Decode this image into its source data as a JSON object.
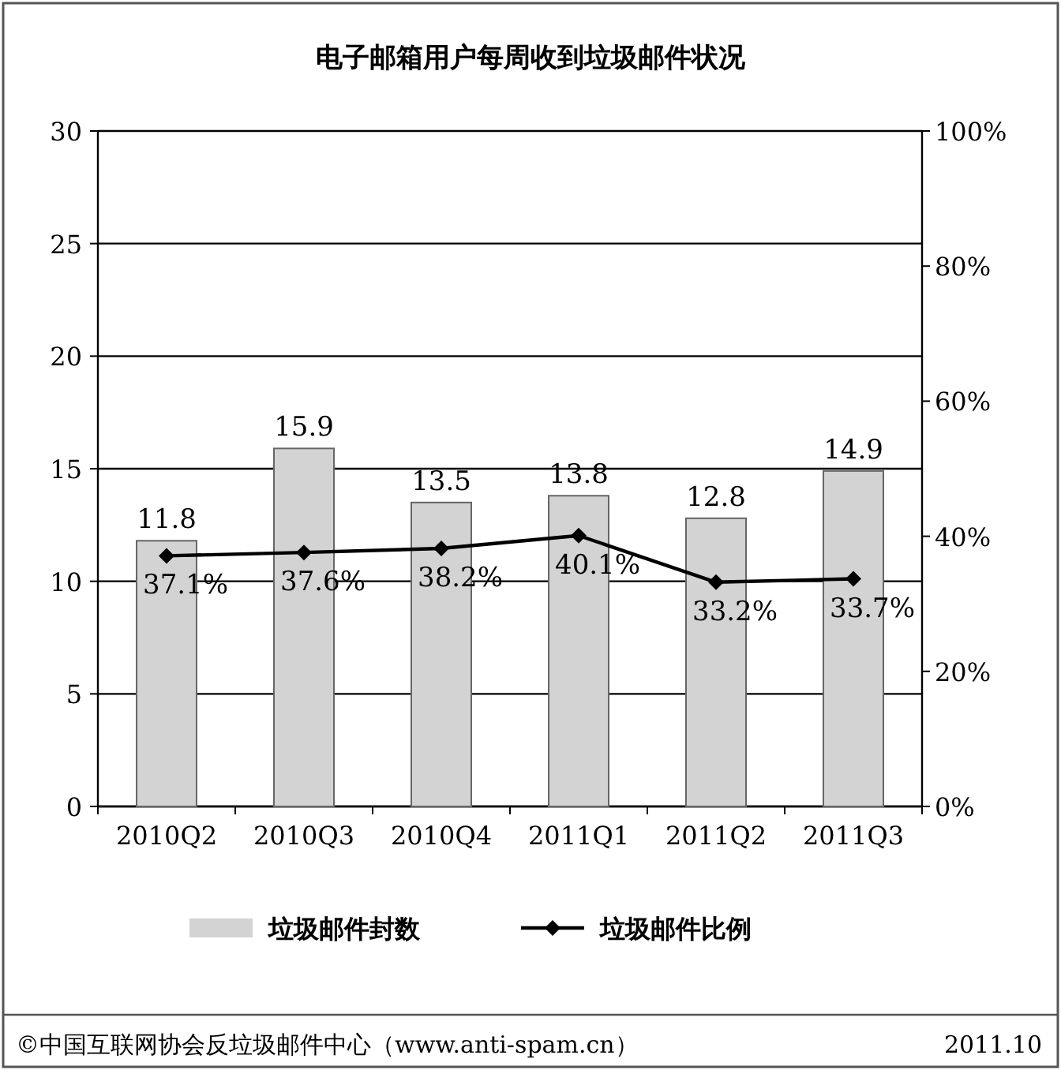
{
  "chart_data": {
    "type": "bar",
    "title": "电子邮箱用户每周收到垃圾邮件状况",
    "categories": [
      "2010Q2",
      "2010Q3",
      "2010Q4",
      "2011Q1",
      "2011Q2",
      "2011Q3"
    ],
    "series": [
      {
        "name": "垃圾邮件封数",
        "color": "#d3d3d3",
        "values": [
          11.8,
          15.9,
          13.5,
          13.8,
          12.8,
          14.9
        ],
        "value_labels": [
          "11.8",
          "15.9",
          "13.5",
          "13.8",
          "12.8",
          "14.9"
        ]
      },
      {
        "name": "垃圾邮件比例",
        "type": "line",
        "axis": "y2",
        "color": "#000000",
        "marker": "diamond",
        "values": [
          37.1,
          37.6,
          38.2,
          40.1,
          33.2,
          33.7
        ],
        "value_labels": [
          "37.1%",
          "37.6%",
          "38.2%",
          "40.1%",
          "33.2%",
          "33.7%"
        ]
      }
    ],
    "ylim": [
      0,
      30
    ],
    "yticks": [
      0,
      5,
      10,
      15,
      20,
      25,
      30
    ],
    "y2lim": [
      0,
      100
    ],
    "y2ticks": [
      {
        "value": 0,
        "label": "0%"
      },
      {
        "value": 20,
        "label": "20%"
      },
      {
        "value": 40,
        "label": "40%"
      },
      {
        "value": 60,
        "label": "60%"
      },
      {
        "value": 80,
        "label": "80%"
      },
      {
        "value": 100,
        "label": "100%"
      }
    ],
    "grid": "y",
    "legend": "bottom",
    "annotations": [
      "©中国互联网协会反垃圾邮件中心（www.anti-spam.cn）",
      "2011.10"
    ]
  }
}
